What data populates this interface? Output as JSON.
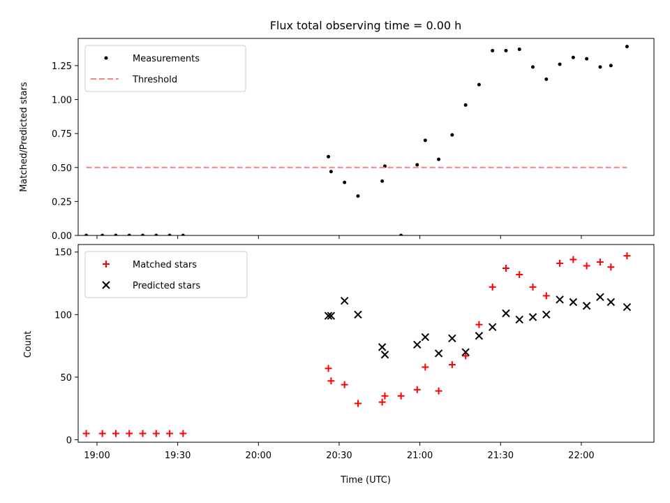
{
  "chart_data": [
    {
      "type": "scatter",
      "title": "Flux total observing time = 0.00 h",
      "xlabel": "",
      "ylabel": "Matched/Predicted stars",
      "xlim": [
        "18:53",
        "22:27"
      ],
      "ylim": [
        0,
        1.45
      ],
      "x_ticks": [
        "19:00",
        "19:30",
        "20:00",
        "20:30",
        "21:00",
        "21:30",
        "22:00"
      ],
      "y_ticks": [
        "0.00",
        "0.25",
        "0.50",
        "0.75",
        "1.00",
        "1.25"
      ],
      "legend_position": "top-left",
      "grid": false,
      "series": [
        {
          "name": "Measurements",
          "marker": "dot",
          "color": "#000000",
          "x": [
            "18:56",
            "19:02",
            "19:07",
            "19:12",
            "19:17",
            "19:22",
            "19:27",
            "19:32",
            "20:26",
            "20:27",
            "20:32",
            "20:37",
            "20:46",
            "20:47",
            "20:53",
            "20:59",
            "21:02",
            "21:07",
            "21:12",
            "21:17",
            "21:22",
            "21:27",
            "21:32",
            "21:37",
            "21:42",
            "21:47",
            "21:52",
            "21:57",
            "22:02",
            "22:07",
            "22:11",
            "22:17"
          ],
          "y": [
            0.0,
            0.0,
            0.0,
            0.0,
            0.0,
            0.0,
            0.0,
            0.0,
            0.58,
            0.47,
            0.39,
            0.29,
            0.4,
            0.51,
            0.0,
            0.52,
            0.7,
            0.56,
            0.74,
            0.96,
            1.11,
            1.36,
            1.36,
            1.37,
            1.24,
            1.15,
            1.26,
            1.31,
            1.3,
            1.24,
            1.25,
            1.39
          ]
        },
        {
          "name": "Threshold",
          "style": "dashed",
          "color": "#ff7f7f",
          "x": [
            "18:56",
            "22:17"
          ],
          "y": [
            0.5,
            0.5
          ]
        }
      ]
    },
    {
      "type": "scatter",
      "title": "",
      "xlabel": "Time (UTC)",
      "ylabel": "Count",
      "xlim": [
        "18:53",
        "22:27"
      ],
      "ylim": [
        -2,
        156
      ],
      "x_ticks": [
        "19:00",
        "19:30",
        "20:00",
        "20:30",
        "21:00",
        "21:30",
        "22:00"
      ],
      "y_ticks": [
        "0",
        "50",
        "100",
        "150"
      ],
      "legend_position": "top-left",
      "grid": false,
      "series": [
        {
          "name": "Matched stars",
          "marker": "plus",
          "color": "#ff0000",
          "x": [
            "18:56",
            "19:02",
            "19:07",
            "19:12",
            "19:17",
            "19:22",
            "19:27",
            "19:32",
            "20:26",
            "20:27",
            "20:32",
            "20:37",
            "20:46",
            "20:47",
            "20:53",
            "20:59",
            "21:02",
            "21:07",
            "21:12",
            "21:17",
            "21:22",
            "21:27",
            "21:32",
            "21:37",
            "21:42",
            "21:47",
            "21:52",
            "21:57",
            "22:02",
            "22:07",
            "22:11",
            "22:17"
          ],
          "y": [
            5,
            5,
            5,
            5,
            5,
            5,
            5,
            5,
            57,
            47,
            44,
            29,
            30,
            35,
            35,
            40,
            58,
            39,
            60,
            67,
            92,
            122,
            137,
            132,
            122,
            115,
            141,
            144,
            139,
            142,
            138,
            147
          ]
        },
        {
          "name": "Predicted stars",
          "marker": "x",
          "color": "#000000",
          "x": [
            "20:26",
            "20:27",
            "20:32",
            "20:37",
            "20:46",
            "20:47",
            "20:59",
            "21:02",
            "21:07",
            "21:12",
            "21:17",
            "21:22",
            "21:27",
            "21:32",
            "21:37",
            "21:42",
            "21:47",
            "21:52",
            "21:57",
            "22:02",
            "22:07",
            "22:11",
            "22:17"
          ],
          "y": [
            99,
            99,
            111,
            100,
            74,
            68,
            76,
            82,
            69,
            81,
            70,
            83,
            90,
            101,
            96,
            98,
            100,
            112,
            110,
            107,
            114,
            110,
            106
          ]
        }
      ]
    }
  ]
}
